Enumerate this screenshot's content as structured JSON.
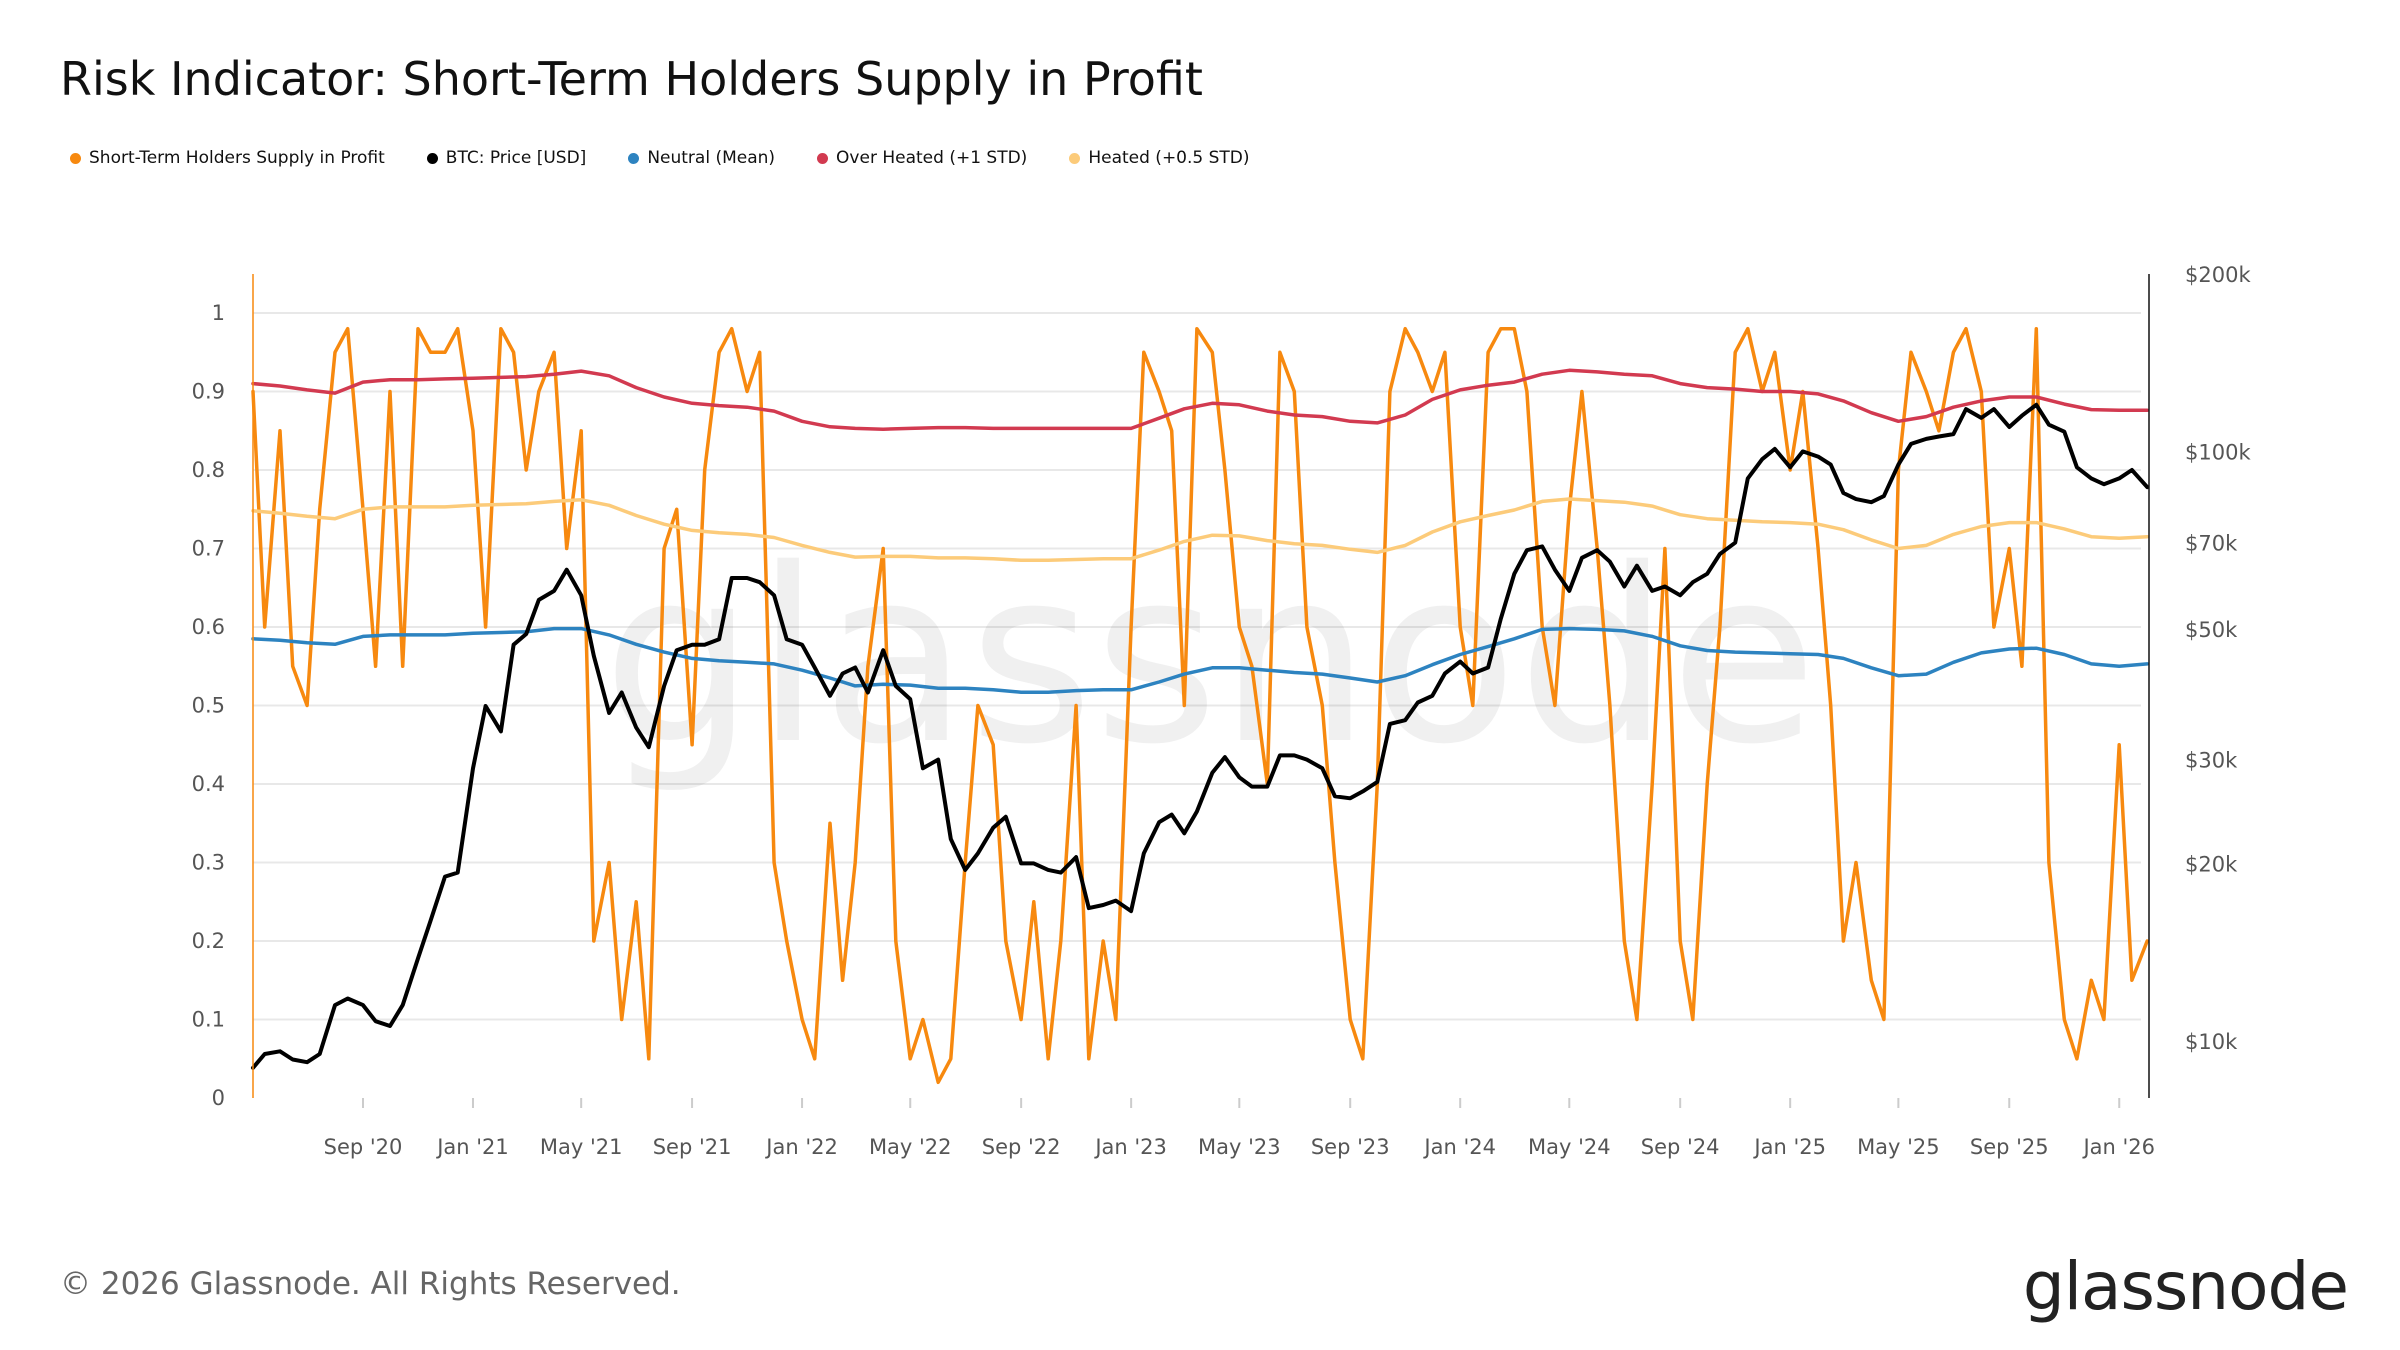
{
  "title": "Risk Indicator: Short-Term Holders Supply in Profit",
  "legend": [
    {
      "label": "Short-Term Holders Supply in Profit",
      "color": "#f7890f"
    },
    {
      "label": "BTC: Price [USD]",
      "color": "#000000"
    },
    {
      "label": "Neutral (Mean)",
      "color": "#2d83c0"
    },
    {
      "label": "Over Heated (+1 STD)",
      "color": "#d23a50"
    },
    {
      "label": "Heated (+0.5 STD)",
      "color": "#fccb7a"
    }
  ],
  "footer": {
    "copyright": "© 2026 Glassnode. All Rights Reserved.",
    "logo": "glassnode"
  },
  "watermark": "glassnode",
  "chart_data": {
    "type": "line",
    "title": "Risk Indicator: Short-Term Holders Supply in Profit",
    "x_range": [
      "2020-05-02",
      "2026-02-03"
    ],
    "x_ticks": [
      {
        "date": "2020-09-01",
        "label": "Sep '20"
      },
      {
        "date": "2021-01-01",
        "label": "Jan '21"
      },
      {
        "date": "2021-05-01",
        "label": "May '21"
      },
      {
        "date": "2021-09-01",
        "label": "Sep '21"
      },
      {
        "date": "2022-01-01",
        "label": "Jan '22"
      },
      {
        "date": "2022-05-01",
        "label": "May '22"
      },
      {
        "date": "2022-09-01",
        "label": "Sep '22"
      },
      {
        "date": "2023-01-01",
        "label": "Jan '23"
      },
      {
        "date": "2023-05-01",
        "label": "May '23"
      },
      {
        "date": "2023-09-01",
        "label": "Sep '23"
      },
      {
        "date": "2024-01-01",
        "label": "Jan '24"
      },
      {
        "date": "2024-05-01",
        "label": "May '24"
      },
      {
        "date": "2024-09-01",
        "label": "Sep '24"
      },
      {
        "date": "2025-01-01",
        "label": "Jan '25"
      },
      {
        "date": "2025-05-01",
        "label": "May '25"
      },
      {
        "date": "2025-09-01",
        "label": "Sep '25"
      },
      {
        "date": "2026-01-01",
        "label": "Jan '26"
      }
    ],
    "y_left": {
      "range": [
        0,
        1
      ],
      "ticks": [
        0,
        0.1,
        0.2,
        0.3,
        0.4,
        0.5,
        0.6,
        0.7,
        0.8,
        0.9,
        1
      ],
      "tick_labels": [
        "0",
        "0.1",
        "0.2",
        "0.3",
        "0.4",
        "0.5",
        "0.6",
        "0.7",
        "0.8",
        "0.9",
        "1"
      ],
      "grid": true
    },
    "y_right": {
      "scale": "log",
      "range": [
        8000,
        200000
      ],
      "ticks": [
        10000,
        20000,
        30000,
        50000,
        70000,
        100000,
        200000
      ],
      "tick_labels": [
        "$10k",
        "$20k",
        "$30k",
        "$50k",
        "$70k",
        "$100k",
        "$200k"
      ]
    },
    "dates_semimonthly": [
      "2020-05-02",
      "2020-05-15",
      "2020-06-01",
      "2020-06-15",
      "2020-07-01",
      "2020-07-15",
      "2020-08-01",
      "2020-08-15",
      "2020-09-01",
      "2020-09-15",
      "2020-10-01",
      "2020-10-15",
      "2020-11-01",
      "2020-11-15",
      "2020-12-01",
      "2020-12-15",
      "2021-01-01",
      "2021-01-15",
      "2021-02-01",
      "2021-02-15",
      "2021-03-01",
      "2021-03-15",
      "2021-04-01",
      "2021-04-15",
      "2021-05-01",
      "2021-05-15",
      "2021-06-01",
      "2021-06-15",
      "2021-07-01",
      "2021-07-15",
      "2021-08-01",
      "2021-08-15",
      "2021-09-01",
      "2021-09-15",
      "2021-10-01",
      "2021-10-15",
      "2021-11-01",
      "2021-11-15",
      "2021-12-01",
      "2021-12-15",
      "2022-01-01",
      "2022-01-15",
      "2022-02-01",
      "2022-02-15",
      "2022-03-01",
      "2022-03-15",
      "2022-04-01",
      "2022-04-15",
      "2022-05-01",
      "2022-05-15",
      "2022-06-01",
      "2022-06-15",
      "2022-07-01",
      "2022-07-15",
      "2022-08-01",
      "2022-08-15",
      "2022-09-01",
      "2022-09-15",
      "2022-10-01",
      "2022-10-15",
      "2022-11-01",
      "2022-11-15",
      "2022-12-01",
      "2022-12-15",
      "2023-01-01",
      "2023-01-15",
      "2023-02-01",
      "2023-02-15",
      "2023-03-01",
      "2023-03-15",
      "2023-04-01",
      "2023-04-15",
      "2023-05-01",
      "2023-05-15",
      "2023-06-01",
      "2023-06-15",
      "2023-07-01",
      "2023-07-15",
      "2023-08-01",
      "2023-08-15",
      "2023-09-01",
      "2023-09-15",
      "2023-10-01",
      "2023-10-15",
      "2023-11-01",
      "2023-11-15",
      "2023-12-01",
      "2023-12-15",
      "2024-01-01",
      "2024-01-15",
      "2024-02-01",
      "2024-02-15",
      "2024-03-01",
      "2024-03-15",
      "2024-04-01",
      "2024-04-15",
      "2024-05-01",
      "2024-05-15",
      "2024-06-01",
      "2024-06-15",
      "2024-07-01",
      "2024-07-15",
      "2024-08-01",
      "2024-08-15",
      "2024-09-01",
      "2024-09-15",
      "2024-10-01",
      "2024-10-15",
      "2024-11-01",
      "2024-11-15",
      "2024-12-01",
      "2024-12-15",
      "2025-01-01",
      "2025-01-15",
      "2025-02-01",
      "2025-02-15",
      "2025-03-01",
      "2025-03-15",
      "2025-04-01",
      "2025-04-15",
      "2025-05-01",
      "2025-05-15",
      "2025-06-01",
      "2025-06-15",
      "2025-07-01",
      "2025-07-15",
      "2025-08-01",
      "2025-08-15",
      "2025-09-01",
      "2025-09-15",
      "2025-10-01",
      "2025-10-15",
      "2025-11-01",
      "2025-11-15",
      "2025-12-01",
      "2025-12-15",
      "2026-01-01",
      "2026-01-15",
      "2026-02-01"
    ],
    "dates_monthly": [
      "2020-05-02",
      "2020-06-01",
      "2020-07-01",
      "2020-08-01",
      "2020-09-01",
      "2020-10-01",
      "2020-11-01",
      "2020-12-01",
      "2021-01-01",
      "2021-02-01",
      "2021-03-01",
      "2021-04-01",
      "2021-05-01",
      "2021-06-01",
      "2021-07-01",
      "2021-08-01",
      "2021-09-01",
      "2021-10-01",
      "2021-11-01",
      "2021-12-01",
      "2022-01-01",
      "2022-02-01",
      "2022-03-01",
      "2022-04-01",
      "2022-05-01",
      "2022-06-01",
      "2022-07-01",
      "2022-08-01",
      "2022-09-01",
      "2022-10-01",
      "2022-11-01",
      "2022-12-01",
      "2023-01-01",
      "2023-02-01",
      "2023-03-01",
      "2023-04-01",
      "2023-05-01",
      "2023-06-01",
      "2023-07-01",
      "2023-08-01",
      "2023-09-01",
      "2023-10-01",
      "2023-11-01",
      "2023-12-01",
      "2024-01-01",
      "2024-02-01",
      "2024-03-01",
      "2024-04-01",
      "2024-05-01",
      "2024-06-01",
      "2024-07-01",
      "2024-08-01",
      "2024-09-01",
      "2024-10-01",
      "2024-11-01",
      "2024-12-01",
      "2025-01-01",
      "2025-02-01",
      "2025-03-01",
      "2025-04-01",
      "2025-05-01",
      "2025-06-01",
      "2025-07-01",
      "2025-08-01",
      "2025-09-01",
      "2025-10-01",
      "2025-11-01",
      "2025-12-01",
      "2026-01-01",
      "2026-02-01"
    ],
    "series": [
      {
        "name": "Short-Term Holders Supply in Profit",
        "axis": "left",
        "dates": "dates_semimonthly",
        "color": "#f7890f",
        "values": [
          0.9,
          0.6,
          0.85,
          0.55,
          0.5,
          0.75,
          0.95,
          0.98,
          0.75,
          0.55,
          0.9,
          0.55,
          0.98,
          0.95,
          0.95,
          0.98,
          0.85,
          0.6,
          0.98,
          0.95,
          0.8,
          0.9,
          0.95,
          0.7,
          0.85,
          0.2,
          0.3,
          0.1,
          0.25,
          0.05,
          0.7,
          0.75,
          0.45,
          0.8,
          0.95,
          0.98,
          0.9,
          0.95,
          0.3,
          0.2,
          0.1,
          0.05,
          0.35,
          0.15,
          0.3,
          0.55,
          0.7,
          0.2,
          0.05,
          0.1,
          0.02,
          0.05,
          0.3,
          0.5,
          0.45,
          0.2,
          0.1,
          0.25,
          0.05,
          0.2,
          0.5,
          0.05,
          0.2,
          0.1,
          0.6,
          0.95,
          0.9,
          0.85,
          0.5,
          0.98,
          0.95,
          0.8,
          0.6,
          0.55,
          0.4,
          0.95,
          0.9,
          0.6,
          0.5,
          0.3,
          0.1,
          0.05,
          0.4,
          0.9,
          0.98,
          0.95,
          0.9,
          0.95,
          0.6,
          0.5,
          0.95,
          0.98,
          0.98,
          0.9,
          0.6,
          0.5,
          0.75,
          0.9,
          0.7,
          0.5,
          0.2,
          0.1,
          0.4,
          0.7,
          0.2,
          0.1,
          0.4,
          0.6,
          0.95,
          0.98,
          0.9,
          0.95,
          0.8,
          0.9,
          0.7,
          0.5,
          0.2,
          0.3,
          0.15,
          0.1,
          0.8,
          0.95,
          0.9,
          0.85,
          0.95,
          0.98,
          0.9,
          0.6,
          0.7,
          0.55,
          0.98,
          0.3,
          0.1,
          0.05,
          0.15,
          0.1,
          0.45,
          0.15,
          0.2
        ]
      },
      {
        "name": "BTC: Price [USD]",
        "axis": "right",
        "dates": "dates_semimonthly",
        "color": "#000000",
        "values": [
          9000,
          9500,
          9600,
          9300,
          9200,
          9500,
          11500,
          11800,
          11500,
          10800,
          10600,
          11500,
          13800,
          16000,
          19000,
          19300,
          29000,
          37000,
          33500,
          47000,
          49000,
          56000,
          58000,
          63000,
          57000,
          45000,
          36000,
          39000,
          34000,
          31500,
          40000,
          46000,
          47000,
          47000,
          48000,
          61000,
          61000,
          60000,
          57000,
          48000,
          47000,
          43000,
          38500,
          42000,
          43000,
          39000,
          46000,
          40000,
          38000,
          29000,
          30000,
          22000,
          19500,
          20800,
          23000,
          24000,
          20000,
          20000,
          19500,
          19300,
          20500,
          16800,
          17000,
          17300,
          16600,
          20800,
          23500,
          24200,
          22500,
          24500,
          28500,
          30300,
          28000,
          27000,
          27000,
          30500,
          30500,
          30000,
          29000,
          26000,
          25800,
          26500,
          27500,
          34500,
          35000,
          37500,
          38500,
          42000,
          44000,
          42000,
          43000,
          52000,
          62000,
          68000,
          69000,
          63000,
          58000,
          66000,
          68000,
          65000,
          59000,
          64000,
          58000,
          59000,
          57000,
          60000,
          62000,
          67000,
          70000,
          90000,
          97000,
          101000,
          94000,
          100000,
          98000,
          95000,
          85000,
          83000,
          82000,
          84000,
          95000,
          103000,
          105000,
          106000,
          107000,
          118000,
          114000,
          118000,
          110000,
          115000,
          120000,
          111000,
          108000,
          94000,
          90000,
          88000,
          90000,
          93000,
          87000
        ]
      },
      {
        "name": "Neutral (Mean)",
        "axis": "left",
        "dates": "dates_monthly",
        "color": "#2d83c0",
        "values": [
          0.585,
          0.583,
          0.58,
          0.578,
          0.588,
          0.59,
          0.59,
          0.59,
          0.592,
          0.593,
          0.594,
          0.598,
          0.598,
          0.59,
          0.578,
          0.568,
          0.56,
          0.557,
          0.555,
          0.553,
          0.545,
          0.535,
          0.525,
          0.527,
          0.526,
          0.522,
          0.522,
          0.52,
          0.517,
          0.517,
          0.519,
          0.52,
          0.52,
          0.53,
          0.54,
          0.548,
          0.548,
          0.545,
          0.542,
          0.54,
          0.535,
          0.53,
          0.538,
          0.552,
          0.565,
          0.575,
          0.585,
          0.597,
          0.598,
          0.597,
          0.595,
          0.588,
          0.576,
          0.57,
          0.568,
          0.567,
          0.566,
          0.565,
          0.56,
          0.548,
          0.538,
          0.54,
          0.555,
          0.567,
          0.572,
          0.573,
          0.565,
          0.553,
          0.55,
          0.553
        ]
      },
      {
        "name": "Over Heated (+1 STD)",
        "axis": "left",
        "dates": "dates_monthly",
        "color": "#d23a50",
        "values": [
          0.91,
          0.907,
          0.902,
          0.898,
          0.912,
          0.915,
          0.915,
          0.916,
          0.917,
          0.918,
          0.919,
          0.922,
          0.926,
          0.92,
          0.905,
          0.893,
          0.885,
          0.882,
          0.88,
          0.875,
          0.862,
          0.855,
          0.853,
          0.852,
          0.853,
          0.854,
          0.854,
          0.853,
          0.853,
          0.853,
          0.853,
          0.853,
          0.853,
          0.866,
          0.878,
          0.885,
          0.883,
          0.875,
          0.87,
          0.868,
          0.862,
          0.86,
          0.87,
          0.89,
          0.902,
          0.908,
          0.912,
          0.922,
          0.927,
          0.925,
          0.922,
          0.92,
          0.91,
          0.905,
          0.903,
          0.9,
          0.9,
          0.897,
          0.888,
          0.873,
          0.862,
          0.868,
          0.88,
          0.888,
          0.893,
          0.893,
          0.884,
          0.877,
          0.876,
          0.876
        ]
      },
      {
        "name": "Heated (+0.5 STD)",
        "axis": "left",
        "dates": "dates_monthly",
        "color": "#fccb7a",
        "values": [
          0.748,
          0.745,
          0.741,
          0.738,
          0.75,
          0.753,
          0.753,
          0.753,
          0.755,
          0.756,
          0.757,
          0.76,
          0.762,
          0.755,
          0.742,
          0.731,
          0.723,
          0.72,
          0.718,
          0.714,
          0.704,
          0.695,
          0.689,
          0.69,
          0.69,
          0.688,
          0.688,
          0.687,
          0.685,
          0.685,
          0.686,
          0.687,
          0.687,
          0.698,
          0.709,
          0.717,
          0.716,
          0.71,
          0.706,
          0.704,
          0.699,
          0.695,
          0.704,
          0.721,
          0.734,
          0.742,
          0.749,
          0.76,
          0.763,
          0.761,
          0.759,
          0.754,
          0.743,
          0.738,
          0.736,
          0.734,
          0.733,
          0.731,
          0.724,
          0.711,
          0.7,
          0.704,
          0.718,
          0.728,
          0.733,
          0.733,
          0.725,
          0.715,
          0.713,
          0.715
        ]
      }
    ],
    "legend_position": "top-left"
  }
}
